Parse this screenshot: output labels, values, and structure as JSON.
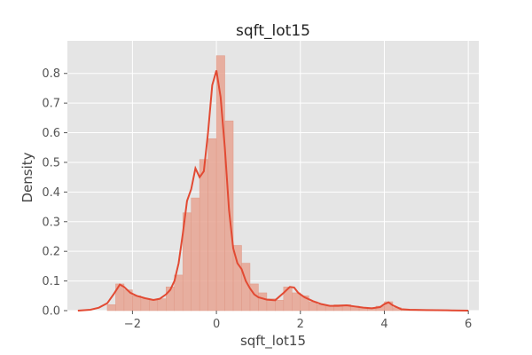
{
  "chart_data": {
    "type": "bar",
    "title": "sqft_lot15",
    "xlabel": "sqft_lot15",
    "ylabel": "Density",
    "xlim": [
      -3.55,
      6.25
    ],
    "ylim": [
      0,
      0.91
    ],
    "x_ticks": [
      -2,
      0,
      2,
      4,
      6
    ],
    "x_tick_labels": [
      "−2",
      "0",
      "2",
      "4",
      "6"
    ],
    "y_ticks": [
      0.0,
      0.1,
      0.2,
      0.3,
      0.4,
      0.5,
      0.6,
      0.7,
      0.8
    ],
    "y_tick_labels": [
      "0.0",
      "0.1",
      "0.2",
      "0.3",
      "0.4",
      "0.5",
      "0.6",
      "0.7",
      "0.8"
    ],
    "grid": true,
    "background": "#e5e5e5",
    "bar_color": "#e8a493",
    "line_color": "#e24a33",
    "histogram": {
      "bin_width": 0.2,
      "bins": [
        {
          "x0": -2.6,
          "density": 0.02
        },
        {
          "x0": -2.4,
          "density": 0.09
        },
        {
          "x0": -2.2,
          "density": 0.07
        },
        {
          "x0": -2.0,
          "density": 0.05
        },
        {
          "x0": -1.8,
          "density": 0.04
        },
        {
          "x0": -1.6,
          "density": 0.035
        },
        {
          "x0": -1.4,
          "density": 0.04
        },
        {
          "x0": -1.2,
          "density": 0.08
        },
        {
          "x0": -1.0,
          "density": 0.12
        },
        {
          "x0": -0.8,
          "density": 0.33
        },
        {
          "x0": -0.6,
          "density": 0.38
        },
        {
          "x0": -0.4,
          "density": 0.51
        },
        {
          "x0": -0.2,
          "density": 0.58
        },
        {
          "x0": 0.0,
          "density": 0.86
        },
        {
          "x0": 0.2,
          "density": 0.64
        },
        {
          "x0": 0.4,
          "density": 0.22
        },
        {
          "x0": 0.6,
          "density": 0.16
        },
        {
          "x0": 0.8,
          "density": 0.09
        },
        {
          "x0": 1.0,
          "density": 0.06
        },
        {
          "x0": 1.2,
          "density": 0.04
        },
        {
          "x0": 1.4,
          "density": 0.035
        },
        {
          "x0": 1.6,
          "density": 0.08
        },
        {
          "x0": 1.8,
          "density": 0.06
        },
        {
          "x0": 2.0,
          "density": 0.05
        },
        {
          "x0": 2.2,
          "density": 0.03
        },
        {
          "x0": 2.4,
          "density": 0.02
        },
        {
          "x0": 2.6,
          "density": 0.015
        },
        {
          "x0": 2.8,
          "density": 0.02
        },
        {
          "x0": 3.0,
          "density": 0.02
        },
        {
          "x0": 3.2,
          "density": 0.015
        },
        {
          "x0": 3.4,
          "density": 0.01
        },
        {
          "x0": 3.6,
          "density": 0.01
        },
        {
          "x0": 3.8,
          "density": 0.015
        },
        {
          "x0": 4.0,
          "density": 0.03
        },
        {
          "x0": 4.2,
          "density": 0.01
        },
        {
          "x0": 4.4,
          "density": 0.005
        },
        {
          "x0": 4.6,
          "density": 0.003
        },
        {
          "x0": 4.8,
          "density": 0.002
        },
        {
          "x0": 5.0,
          "density": 0.002
        },
        {
          "x0": 5.2,
          "density": 0.001
        },
        {
          "x0": 5.4,
          "density": 0.001
        },
        {
          "x0": 5.6,
          "density": 0.001
        },
        {
          "x0": 5.8,
          "density": 0.001
        }
      ]
    },
    "kde": {
      "x": [
        -3.3,
        -3.0,
        -2.8,
        -2.6,
        -2.45,
        -2.3,
        -2.2,
        -2.05,
        -1.9,
        -1.7,
        -1.5,
        -1.35,
        -1.2,
        -1.1,
        -1.0,
        -0.9,
        -0.8,
        -0.7,
        -0.6,
        -0.5,
        -0.4,
        -0.3,
        -0.2,
        -0.1,
        0.0,
        0.1,
        0.2,
        0.3,
        0.4,
        0.5,
        0.6,
        0.7,
        0.8,
        0.9,
        1.0,
        1.2,
        1.4,
        1.6,
        1.75,
        1.85,
        1.95,
        2.1,
        2.3,
        2.5,
        2.7,
        2.9,
        3.1,
        3.3,
        3.5,
        3.7,
        3.9,
        4.0,
        4.1,
        4.2,
        4.4,
        4.6,
        5.0,
        5.5,
        6.0
      ],
      "y": [
        0.0,
        0.003,
        0.01,
        0.025,
        0.055,
        0.088,
        0.08,
        0.06,
        0.05,
        0.042,
        0.036,
        0.04,
        0.055,
        0.07,
        0.1,
        0.16,
        0.26,
        0.37,
        0.41,
        0.48,
        0.45,
        0.47,
        0.6,
        0.76,
        0.81,
        0.72,
        0.55,
        0.34,
        0.21,
        0.16,
        0.14,
        0.1,
        0.075,
        0.055,
        0.045,
        0.037,
        0.035,
        0.06,
        0.08,
        0.078,
        0.06,
        0.045,
        0.032,
        0.022,
        0.016,
        0.016,
        0.018,
        0.014,
        0.01,
        0.008,
        0.012,
        0.022,
        0.028,
        0.018,
        0.005,
        0.003,
        0.002,
        0.001,
        0.0
      ]
    }
  }
}
